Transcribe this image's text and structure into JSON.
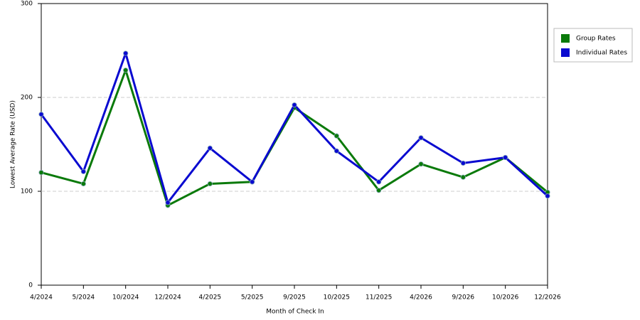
{
  "chart_data": {
    "type": "line",
    "x_label": "Month of Check In",
    "y_label": "Lowest Average Rate (USD)",
    "categories": [
      "4/2024",
      "5/2024",
      "10/2024",
      "12/2024",
      "4/2025",
      "5/2025",
      "9/2025",
      "10/2025",
      "11/2025",
      "4/2026",
      "9/2026",
      "10/2026",
      "12/2026"
    ],
    "series": [
      {
        "name": "Group Rates",
        "color": "#0a7a0a",
        "values": [
          120,
          108,
          229,
          85,
          108,
          110,
          189,
          159,
          101,
          129,
          115,
          136,
          99
        ]
      },
      {
        "name": "Individual Rates",
        "color": "#0a0ad0",
        "values": [
          182,
          121,
          247,
          88,
          146,
          110,
          192,
          143,
          110,
          157,
          130,
          136,
          95
        ]
      }
    ],
    "ylim": [
      0,
      300
    ],
    "yticks": [
      0,
      100,
      200,
      300
    ],
    "grid": true,
    "legend": "right"
  }
}
